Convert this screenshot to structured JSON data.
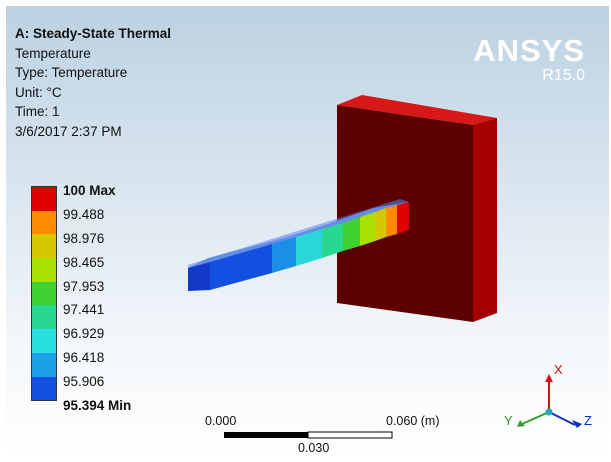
{
  "info": {
    "title": "A: Steady-State Thermal",
    "result": "Temperature",
    "type": "Type: Temperature",
    "unit": "Unit: °C",
    "time": "Time: 1",
    "date": "3/6/2017 2:37 PM"
  },
  "logo": {
    "name": "ANSYS",
    "version": "R15.0"
  },
  "legend": {
    "colors": [
      "#e00000",
      "#ff8c00",
      "#d6c800",
      "#a8e000",
      "#40d030",
      "#28d890",
      "#28e0e0",
      "#1ca0e8",
      "#1450e0"
    ],
    "labels": [
      "100 Max",
      "99.488",
      "98.976",
      "98.465",
      "97.953",
      "97.441",
      "96.929",
      "96.418",
      "95.906",
      "95.394 Min"
    ]
  },
  "scale": {
    "left": "0.000",
    "right": "0.060 (m)",
    "mid": "0.030"
  },
  "triad": {
    "x": "X",
    "y": "Y",
    "z": "Z"
  }
}
